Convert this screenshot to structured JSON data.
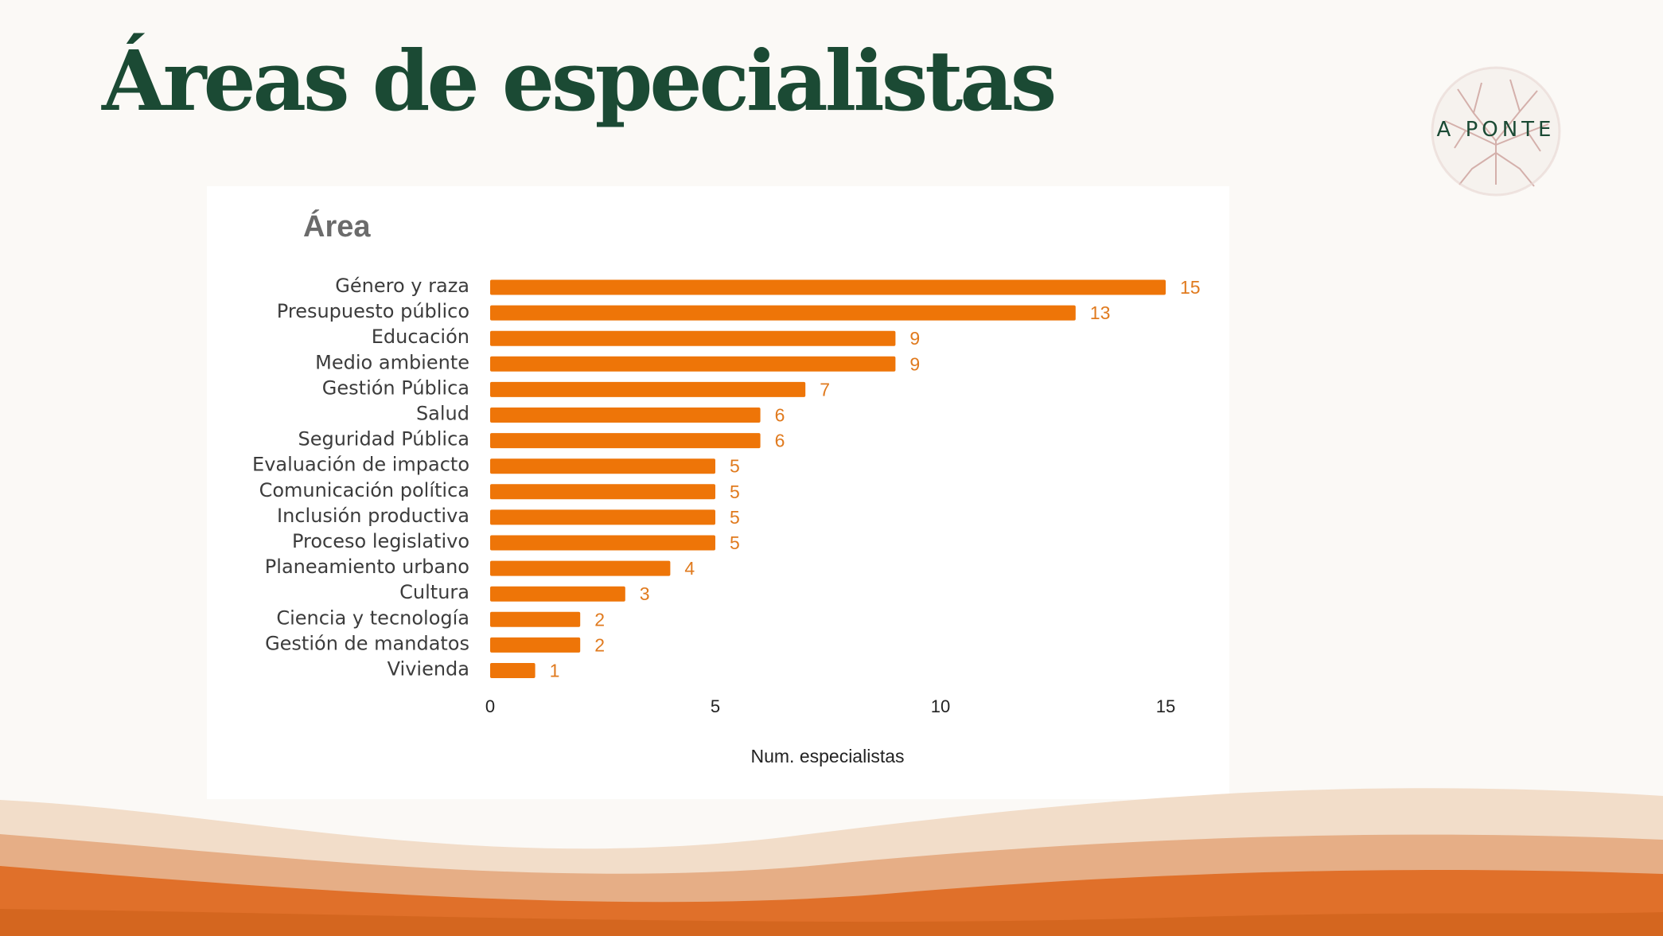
{
  "slide": {
    "title": "Áreas de especialistas",
    "logo_text": "A PONTE"
  },
  "colors": {
    "title": "#1b4a34",
    "bar": "#ee7508",
    "bar_label": "#e07a1e",
    "wave_light": "#f2ddc9",
    "wave_mid": "#e6ae86",
    "wave_dark": "#e0702a"
  },
  "chart_data": {
    "type": "bar",
    "orientation": "horizontal",
    "title": "Área",
    "xlabel": "Num. especialistas",
    "ylabel": "",
    "xlim": [
      0,
      15
    ],
    "xticks": [
      0,
      5,
      10,
      15
    ],
    "grid": false,
    "legend": "none",
    "categories": [
      "Género y raza",
      "Presupuesto público",
      "Educación",
      "Medio ambiente",
      "Gestión Pública",
      "Salud",
      "Seguridad Pública",
      "Evaluación de impacto",
      "Comunicación política",
      "Inclusión productiva",
      "Proceso legislativo",
      "Planeamiento urbano",
      "Cultura",
      "Ciencia y tecnología",
      "Gestión de mandatos",
      "Vivienda"
    ],
    "values": [
      15,
      13,
      9,
      9,
      7,
      6,
      6,
      5,
      5,
      5,
      5,
      4,
      3,
      2,
      2,
      1
    ]
  }
}
